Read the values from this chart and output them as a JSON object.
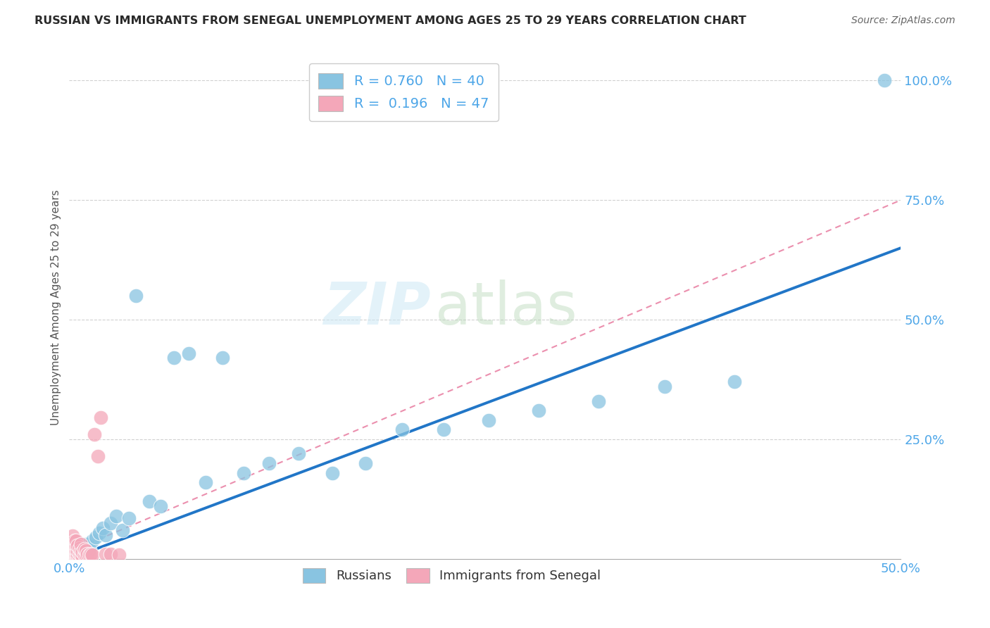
{
  "title": "RUSSIAN VS IMMIGRANTS FROM SENEGAL UNEMPLOYMENT AMONG AGES 25 TO 29 YEARS CORRELATION CHART",
  "source": "Source: ZipAtlas.com",
  "ylabel": "Unemployment Among Ages 25 to 29 years",
  "xlim": [
    0.0,
    0.5
  ],
  "ylim": [
    0.0,
    1.05
  ],
  "xticks": [
    0.0,
    0.1,
    0.2,
    0.3,
    0.4,
    0.5
  ],
  "xticklabels": [
    "0.0%",
    "",
    "",
    "",
    "",
    "50.0%"
  ],
  "yticks": [
    0.25,
    0.5,
    0.75,
    1.0
  ],
  "yticklabels": [
    "25.0%",
    "50.0%",
    "75.0%",
    "100.0%"
  ],
  "watermark_zip": "ZIP",
  "watermark_atlas": "atlas",
  "legend_r_blue": "0.760",
  "legend_n_blue": "40",
  "legend_r_pink": "0.196",
  "legend_n_pink": "47",
  "blue_color": "#89c4e1",
  "pink_color": "#f4a7b9",
  "blue_line_color": "#2176c7",
  "pink_line_color": "#e87ca0",
  "axis_tick_color": "#4da6e8",
  "grid_color": "#cccccc",
  "russians_x": [
    0.002,
    0.003,
    0.004,
    0.005,
    0.005,
    0.006,
    0.007,
    0.008,
    0.009,
    0.01,
    0.012,
    0.014,
    0.016,
    0.018,
    0.02,
    0.022,
    0.025,
    0.028,
    0.032,
    0.036,
    0.04,
    0.048,
    0.055,
    0.063,
    0.072,
    0.082,
    0.092,
    0.105,
    0.12,
    0.138,
    0.158,
    0.178,
    0.2,
    0.225,
    0.252,
    0.282,
    0.318,
    0.358,
    0.4,
    0.49
  ],
  "russians_y": [
    0.01,
    0.005,
    0.012,
    0.008,
    0.018,
    0.015,
    0.022,
    0.01,
    0.025,
    0.03,
    0.02,
    0.038,
    0.045,
    0.055,
    0.065,
    0.05,
    0.075,
    0.09,
    0.06,
    0.085,
    0.55,
    0.12,
    0.11,
    0.42,
    0.43,
    0.16,
    0.42,
    0.18,
    0.2,
    0.22,
    0.18,
    0.2,
    0.27,
    0.27,
    0.29,
    0.31,
    0.33,
    0.36,
    0.37,
    1.0
  ],
  "senegal_x": [
    0.001,
    0.001,
    0.001,
    0.001,
    0.001,
    0.002,
    0.002,
    0.002,
    0.002,
    0.002,
    0.002,
    0.003,
    0.003,
    0.003,
    0.003,
    0.003,
    0.004,
    0.004,
    0.004,
    0.004,
    0.004,
    0.005,
    0.005,
    0.005,
    0.005,
    0.006,
    0.006,
    0.006,
    0.007,
    0.007,
    0.007,
    0.008,
    0.008,
    0.009,
    0.009,
    0.01,
    0.01,
    0.011,
    0.012,
    0.013,
    0.014,
    0.015,
    0.017,
    0.019,
    0.022,
    0.025,
    0.03
  ],
  "senegal_y": [
    0.005,
    0.01,
    0.018,
    0.028,
    0.038,
    0.005,
    0.012,
    0.02,
    0.028,
    0.038,
    0.048,
    0.005,
    0.01,
    0.018,
    0.028,
    0.038,
    0.005,
    0.01,
    0.018,
    0.028,
    0.038,
    0.005,
    0.01,
    0.018,
    0.028,
    0.005,
    0.012,
    0.022,
    0.008,
    0.018,
    0.03,
    0.005,
    0.015,
    0.008,
    0.02,
    0.008,
    0.018,
    0.01,
    0.008,
    0.01,
    0.008,
    0.26,
    0.215,
    0.295,
    0.01,
    0.01,
    0.008
  ],
  "blue_line_x": [
    0.0,
    0.5
  ],
  "blue_line_y": [
    0.0,
    0.65
  ],
  "pink_line_x": [
    0.0,
    0.5
  ],
  "pink_line_y": [
    0.015,
    0.75
  ]
}
